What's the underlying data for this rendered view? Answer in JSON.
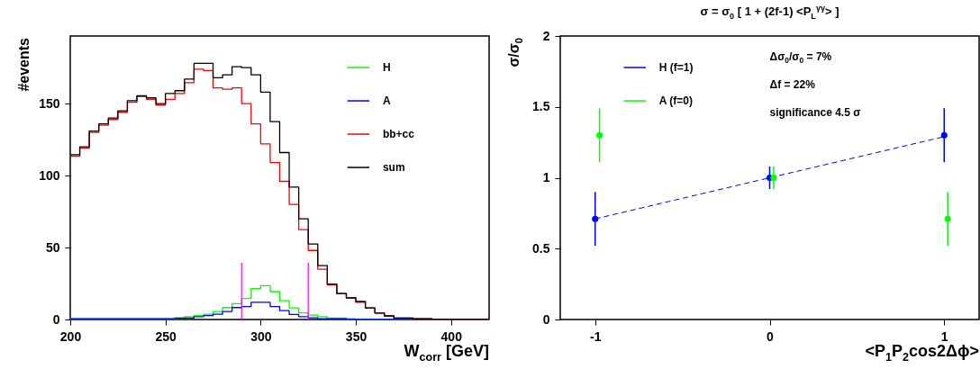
{
  "chart_data": [
    {
      "type": "histogram",
      "xlabel": "W$_{corr}$ [GeV]",
      "ylabel": "#events",
      "xlim": [
        200,
        420
      ],
      "xticks": [
        200,
        250,
        300,
        350,
        400
      ],
      "ylim": [
        0,
        197
      ],
      "yticks": [
        0,
        50,
        100,
        150
      ],
      "legend": "top right",
      "bins": [
        200,
        205,
        210,
        215,
        220,
        225,
        230,
        235,
        240,
        245,
        250,
        255,
        260,
        265,
        270,
        275,
        280,
        285,
        290,
        295,
        300,
        305,
        310,
        315,
        320,
        325,
        330,
        335,
        340,
        345,
        350,
        355,
        360,
        365,
        370,
        375,
        380,
        385,
        390,
        395,
        400,
        405,
        410,
        415,
        420
      ],
      "series": [
        {
          "name": "H",
          "color": "#00ff00",
          "values": [
            0.5,
            0.5,
            0.5,
            0.5,
            0.5,
            0.5,
            0.5,
            0.5,
            0.5,
            0.5,
            0.5,
            1,
            2,
            2.7,
            3.7,
            5.6,
            8.3,
            11,
            14.6,
            21.5,
            23.5,
            19.4,
            13,
            8,
            4.6,
            3,
            1.9,
            1,
            1,
            0.5,
            0,
            0,
            0,
            0,
            0,
            0,
            0,
            0,
            0,
            0,
            0,
            0,
            0,
            0
          ]
        },
        {
          "name": "A",
          "color": "#0000ff",
          "values": [
            0.5,
            0.5,
            0.5,
            0.5,
            0.5,
            0.5,
            0.5,
            0.5,
            0.5,
            0.5,
            0.5,
            1,
            1,
            2,
            2.7,
            3.7,
            5.6,
            8.3,
            9,
            12,
            12,
            9,
            6.2,
            3.5,
            2,
            1.2,
            0.5,
            0.5,
            0.5,
            0,
            0,
            0,
            0,
            0,
            0,
            0,
            0,
            0,
            0,
            0,
            0,
            0,
            0,
            0
          ]
        },
        {
          "name": "bb+cc",
          "color": "#ff0000",
          "values": [
            113.5,
            119,
            130,
            135,
            139,
            144,
            151,
            155,
            153,
            149,
            153,
            157,
            164.5,
            174,
            173,
            161,
            160,
            161,
            150,
            136,
            122,
            109,
            96,
            80,
            62.5,
            48,
            35,
            24,
            18,
            15,
            12,
            8,
            4.5,
            2.5,
            1,
            1,
            0.5,
            0.5,
            0,
            0,
            0,
            0,
            0,
            0
          ]
        },
        {
          "name": "sum",
          "color": "#000000",
          "values": [
            114.5,
            120,
            131,
            136,
            140,
            145,
            152,
            155.4,
            154,
            150,
            157,
            159,
            167,
            178,
            178,
            168,
            170,
            175.6,
            175,
            170,
            158,
            137.5,
            116,
            92,
            70,
            52.5,
            37.5,
            24.6,
            18,
            15,
            12.5,
            8,
            4.5,
            2.5,
            1,
            1,
            0.5,
            0.5,
            0,
            0,
            0,
            0,
            0,
            0
          ]
        }
      ],
      "ref_lines": [
        {
          "axis": "x",
          "value": 290,
          "color": "#ff00ff"
        },
        {
          "axis": "x",
          "value": 325,
          "color": "#ff00ff"
        }
      ]
    },
    {
      "type": "scatter",
      "title": "σ = σ$_{0}$ [ 1 + (2f-1) <P$_{L}$$^{γγ}$> ]",
      "xlabel": "<P$_{1}$P$_{2}$cos2Δϕ>",
      "ylabel": "σ/σ$_{0}$",
      "xlim": [
        -1.2,
        1.2
      ],
      "xticks": [
        -1,
        0,
        1
      ],
      "ylim": [
        0,
        2
      ],
      "yticks": [
        0,
        0.5,
        1,
        1.5,
        2
      ],
      "legend": "top left",
      "marker": "circle",
      "annotations": [
        "Δσ$_{0}$/σ$_{0}$ = 7%",
        "Δf = 22%",
        "significance 4.5 σ"
      ],
      "series": [
        {
          "name": "H (f=1)",
          "color": "#0000ff",
          "x": [
            -1,
            0,
            1
          ],
          "values": [
            0.71,
            1,
            1.3
          ],
          "errors": [
            0.19,
            0.08,
            0.19
          ]
        },
        {
          "name": "A (f=0)",
          "color": "#00ff00",
          "x": [
            -0.975,
            0.023,
            1.02
          ],
          "values": [
            1.3,
            1,
            0.71
          ],
          "errors": [
            0.19,
            0.08,
            0.19
          ]
        },
        {
          "type": "line",
          "color": "#0000ff",
          "x": [
            -1,
            1
          ],
          "values": [
            0.71,
            1.29
          ],
          "line_style": "dashed",
          "marker": "none"
        }
      ]
    }
  ]
}
